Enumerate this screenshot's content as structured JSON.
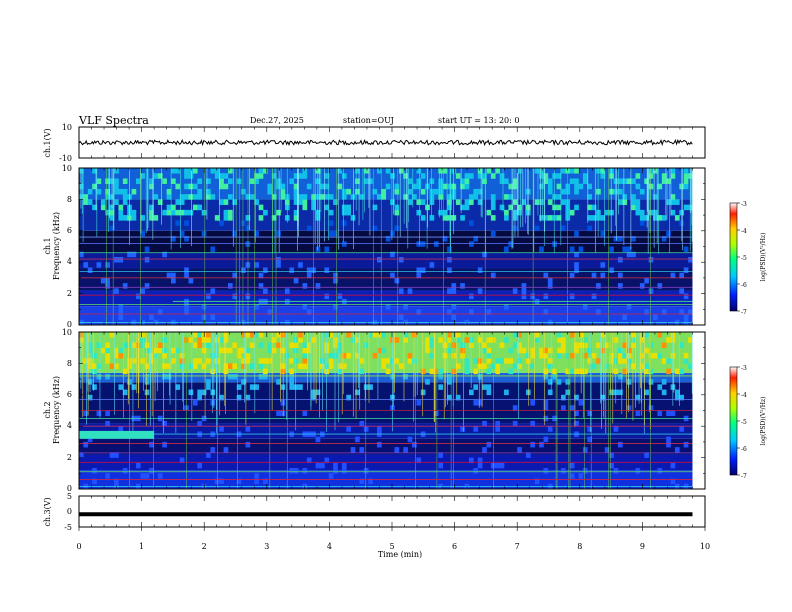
{
  "header": {
    "title": "VLF Spectra",
    "date": "Dec.27, 2025",
    "station": "station=OUJ",
    "start_ut": "start  UT  =   13: 20: 0"
  },
  "chart_data": [
    {
      "type": "line",
      "panel": "ch1-waveform",
      "ylabel": "ch.1(V)",
      "ylim": [
        -10,
        10
      ],
      "y_tick_labels": [
        "10",
        "-10"
      ],
      "x_range_min": [
        0,
        9.8
      ],
      "baseline_level_V": 0
    },
    {
      "type": "heatmap",
      "panel": "ch1-spectrogram",
      "ylabel_top": "ch.1",
      "ylabel": "Frequency (kHz)",
      "ylim": [
        0,
        10
      ],
      "y_tick_labels": [
        "0",
        "2",
        "4",
        "6",
        "8",
        "10"
      ],
      "x_range_min": [
        0,
        9.8
      ],
      "colorbar": {
        "label": "log(PSD)(V²/Hz)",
        "range": [
          -7,
          -3
        ],
        "tick_labels": [
          "-3",
          "-4",
          "-5",
          "-6",
          "-7"
        ]
      }
    },
    {
      "type": "heatmap",
      "panel": "ch2-spectrogram",
      "ylabel_top": "ch.2",
      "ylabel": "Frequency (kHz)",
      "ylim": [
        0,
        10
      ],
      "y_tick_labels": [
        "0",
        "2",
        "4",
        "6",
        "8",
        "10"
      ],
      "x_range_min": [
        0,
        9.8
      ],
      "colorbar": {
        "label": "log(PSD)(V²/Hz)",
        "range": [
          -7,
          -3
        ],
        "tick_labels": [
          "-3",
          "-4",
          "-5",
          "-6",
          "-7"
        ]
      }
    },
    {
      "type": "line",
      "panel": "ch3-waveform",
      "ylabel": "ch.3(V)",
      "ylim": [
        -5,
        5
      ],
      "y_tick_labels": [
        "5",
        "0",
        "-5"
      ],
      "x_range_min": [
        0,
        9.8
      ],
      "baseline_level_V": -0.9
    }
  ],
  "x_axis": {
    "label": "Time  (min)",
    "range": [
      0,
      10
    ],
    "tick_labels": [
      "0",
      "1",
      "2",
      "3",
      "4",
      "5",
      "6",
      "7",
      "8",
      "9",
      "10"
    ]
  },
  "colors": {
    "frame": "#000000",
    "background": "#ffffff"
  }
}
